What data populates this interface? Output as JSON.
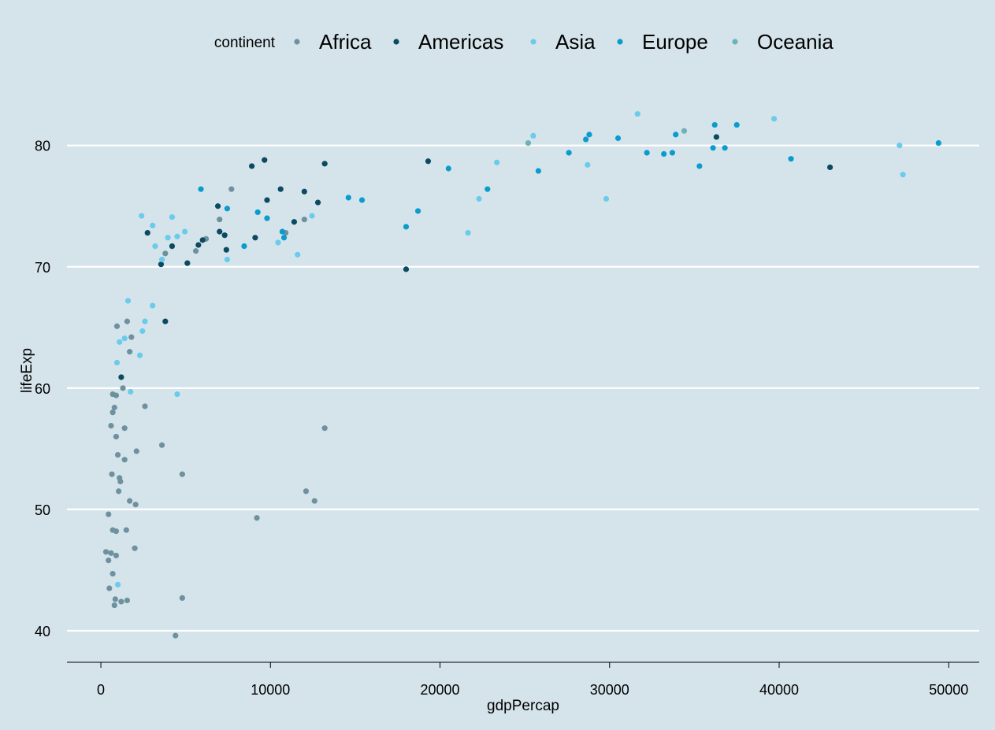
{
  "chart_data": {
    "type": "scatter",
    "xlabel": "gdpPercap",
    "ylabel": "lifeExp",
    "xlim": [
      -2000,
      51800
    ],
    "ylim": [
      37.4,
      85.5
    ],
    "x_ticks": [
      0,
      10000,
      20000,
      30000,
      40000,
      50000
    ],
    "y_ticks": [
      40,
      50,
      60,
      70,
      80
    ],
    "grid": {
      "horizontal": true,
      "vertical": false
    },
    "background": "#d5e4eb",
    "legend": {
      "title": "continent",
      "position": "top"
    },
    "series": [
      {
        "name": "Africa",
        "color": "#6e919f",
        "points": [
          [
            300,
            46.5
          ],
          [
            450,
            45.8
          ],
          [
            500,
            43.5
          ],
          [
            450,
            49.6
          ],
          [
            600,
            46.4
          ],
          [
            600,
            56.9
          ],
          [
            650,
            52.9
          ],
          [
            700,
            48.3
          ],
          [
            700,
            44.7
          ],
          [
            700,
            58.0
          ],
          [
            700,
            59.5
          ],
          [
            800,
            58.4
          ],
          [
            800,
            42.1
          ],
          [
            850,
            42.6
          ],
          [
            900,
            48.2
          ],
          [
            900,
            46.2
          ],
          [
            900,
            56.0
          ],
          [
            900,
            59.4
          ],
          [
            950,
            65.1
          ],
          [
            1000,
            54.5
          ],
          [
            1050,
            51.5
          ],
          [
            1100,
            52.6
          ],
          [
            1150,
            52.3
          ],
          [
            1200,
            42.4
          ],
          [
            1300,
            60.0
          ],
          [
            1400,
            56.7
          ],
          [
            1400,
            54.1
          ],
          [
            1500,
            48.3
          ],
          [
            1550,
            65.5
          ],
          [
            1550,
            42.5
          ],
          [
            1700,
            63.0
          ],
          [
            1700,
            50.7
          ],
          [
            1800,
            64.2
          ],
          [
            2000,
            46.8
          ],
          [
            2050,
            50.4
          ],
          [
            2100,
            54.8
          ],
          [
            2600,
            58.5
          ],
          [
            3600,
            55.3
          ],
          [
            3800,
            71.1
          ],
          [
            4400,
            39.6
          ],
          [
            4800,
            52.9
          ],
          [
            4800,
            42.7
          ],
          [
            5600,
            71.3
          ],
          [
            6200,
            72.3
          ],
          [
            7000,
            73.9
          ],
          [
            7700,
            76.4
          ],
          [
            9200,
            49.3
          ],
          [
            10900,
            72.8
          ],
          [
            12000,
            73.9
          ],
          [
            12100,
            51.5
          ],
          [
            12600,
            50.7
          ],
          [
            13200,
            56.7
          ]
        ]
      },
      {
        "name": "Americas",
        "color": "#0c4a61",
        "points": [
          [
            1200,
            60.9
          ],
          [
            2750,
            72.8
          ],
          [
            3550,
            70.2
          ],
          [
            3800,
            65.5
          ],
          [
            4200,
            71.7
          ],
          [
            5100,
            70.3
          ],
          [
            5750,
            71.8
          ],
          [
            6000,
            72.2
          ],
          [
            6900,
            75.0
          ],
          [
            7000,
            72.9
          ],
          [
            7300,
            72.6
          ],
          [
            7400,
            71.4
          ],
          [
            8900,
            78.3
          ],
          [
            9100,
            72.4
          ],
          [
            9650,
            78.8
          ],
          [
            9800,
            75.5
          ],
          [
            10600,
            76.4
          ],
          [
            11400,
            73.7
          ],
          [
            12000,
            76.2
          ],
          [
            12800,
            75.3
          ],
          [
            13200,
            78.5
          ],
          [
            18000,
            69.8
          ],
          [
            19300,
            78.7
          ],
          [
            36300,
            80.7
          ],
          [
            43000,
            78.2
          ]
        ]
      },
      {
        "name": "Asia",
        "color": "#6acbeb",
        "points": [
          [
            950,
            62.1
          ],
          [
            1000,
            43.8
          ],
          [
            1100,
            63.8
          ],
          [
            1400,
            64.1
          ],
          [
            1600,
            67.2
          ],
          [
            1750,
            59.7
          ],
          [
            2300,
            62.7
          ],
          [
            2400,
            74.2
          ],
          [
            2450,
            64.7
          ],
          [
            2600,
            65.5
          ],
          [
            3050,
            73.4
          ],
          [
            3050,
            66.8
          ],
          [
            3200,
            71.7
          ],
          [
            3600,
            70.6
          ],
          [
            3950,
            72.4
          ],
          [
            4200,
            74.1
          ],
          [
            4500,
            59.5
          ],
          [
            4950,
            72.9
          ],
          [
            4500,
            72.5
          ],
          [
            7450,
            70.6
          ],
          [
            10450,
            72.0
          ],
          [
            11600,
            71.0
          ],
          [
            12450,
            74.2
          ],
          [
            21650,
            72.8
          ],
          [
            22300,
            75.6
          ],
          [
            23350,
            78.6
          ],
          [
            25500,
            80.8
          ],
          [
            28700,
            78.4
          ],
          [
            29800,
            75.6
          ],
          [
            31650,
            82.6
          ],
          [
            39700,
            82.2
          ],
          [
            47100,
            80.0
          ],
          [
            47300,
            77.6
          ]
        ]
      },
      {
        "name": "Europe",
        "color": "#0a9ccc",
        "points": [
          [
            5900,
            76.4
          ],
          [
            7450,
            74.8
          ],
          [
            8450,
            71.7
          ],
          [
            9250,
            74.5
          ],
          [
            9800,
            74.0
          ],
          [
            10700,
            72.9
          ],
          [
            10800,
            72.4
          ],
          [
            14600,
            75.7
          ],
          [
            15400,
            75.5
          ],
          [
            18000,
            73.3
          ],
          [
            18700,
            74.6
          ],
          [
            20500,
            78.1
          ],
          [
            22800,
            76.4
          ],
          [
            25800,
            77.9
          ],
          [
            27600,
            79.4
          ],
          [
            28600,
            80.5
          ],
          [
            28800,
            80.9
          ],
          [
            30500,
            80.6
          ],
          [
            32200,
            79.4
          ],
          [
            33200,
            79.3
          ],
          [
            33700,
            79.4
          ],
          [
            33900,
            80.9
          ],
          [
            35300,
            78.3
          ],
          [
            36100,
            79.8
          ],
          [
            36200,
            81.7
          ],
          [
            36800,
            79.8
          ],
          [
            37500,
            81.7
          ],
          [
            40700,
            78.9
          ],
          [
            49400,
            80.2
          ]
        ]
      },
      {
        "name": "Oceania",
        "color": "#6cb2b9",
        "points": [
          [
            25200,
            80.2
          ],
          [
            34400,
            81.2
          ]
        ]
      }
    ]
  }
}
